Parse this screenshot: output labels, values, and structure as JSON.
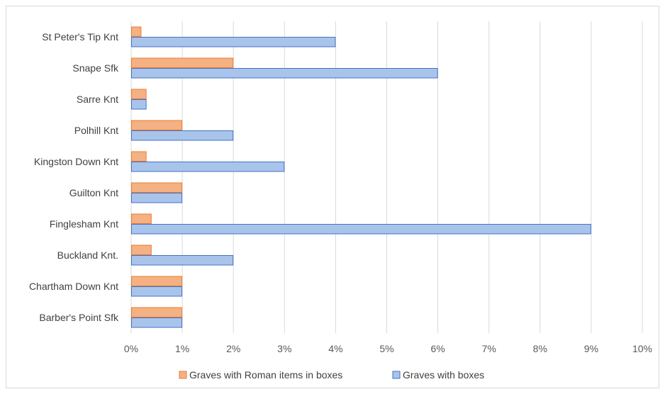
{
  "chart_data": {
    "type": "bar",
    "orientation": "horizontal",
    "categories": [
      "St Peter's Tip Knt",
      "Snape Sfk",
      "Sarre Knt",
      "Polhill Knt",
      "Kingston Down Knt",
      "Guilton Knt",
      "Finglesham Knt",
      "Buckland Knt.",
      "Chartham Down Knt",
      "Barber's Point Sfk"
    ],
    "series": [
      {
        "name": "Graves with Roman items in boxes",
        "color": "#f4b183",
        "stroke": "#ed7d31",
        "values": [
          0.2,
          2,
          0.3,
          1,
          0.3,
          1,
          0.4,
          0.4,
          1,
          1
        ]
      },
      {
        "name": "Graves with boxes",
        "color": "#a9c4eb",
        "stroke": "#4472c4",
        "values": [
          4,
          6,
          0.3,
          2,
          3,
          1,
          9,
          2,
          1,
          1
        ]
      }
    ],
    "xlim": [
      0,
      10
    ],
    "x_ticks": [
      "0%",
      "1%",
      "2%",
      "3%",
      "4%",
      "5%",
      "6%",
      "7%",
      "8%",
      "9%",
      "10%"
    ],
    "grid": true,
    "legend_position": "bottom",
    "title": "",
    "xlabel": "",
    "ylabel": ""
  }
}
